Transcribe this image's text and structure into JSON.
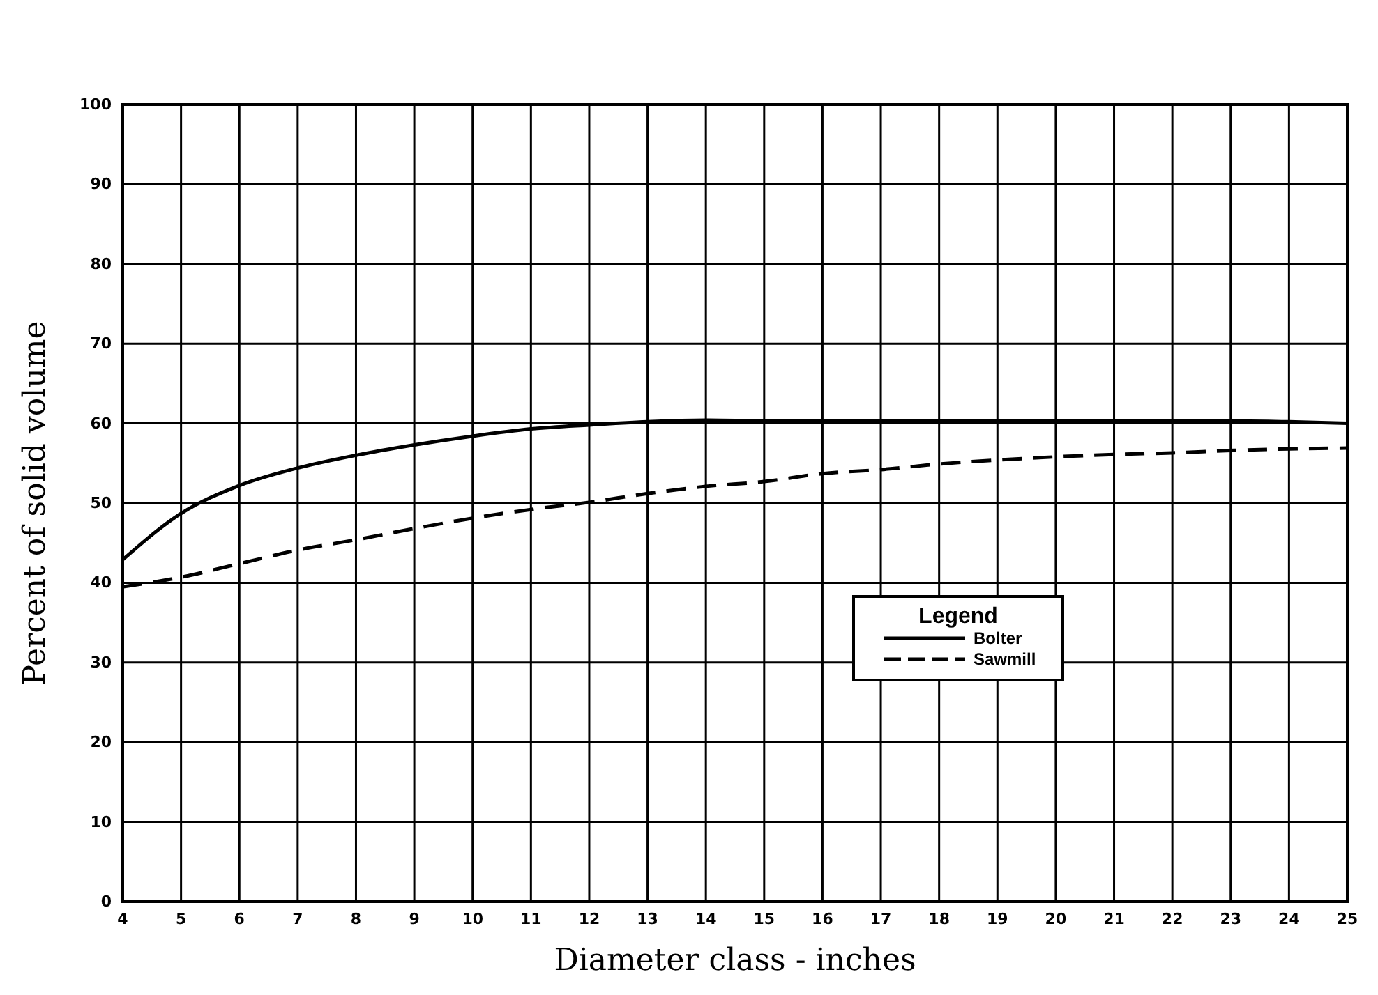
{
  "chart_data": {
    "type": "line",
    "xlabel": "Diameter class - inches",
    "ylabel": "Percent of solid volume",
    "legend_title": "Legend",
    "legend": "right",
    "x": [
      4,
      5,
      6,
      7,
      8,
      9,
      10,
      11,
      12,
      13,
      14,
      15,
      16,
      17,
      18,
      19,
      20,
      21,
      22,
      23,
      24,
      25
    ],
    "series": [
      {
        "name": "Bolter",
        "color": "#000000",
        "line_style": "solid",
        "values": [
          42.9,
          48.7,
          52.2,
          54.4,
          56.0,
          57.3,
          58.4,
          59.3,
          59.8,
          60.2,
          60.4,
          60.3,
          60.3,
          60.3,
          60.3,
          60.3,
          60.3,
          60.3,
          60.3,
          60.3,
          60.2,
          60.0
        ]
      },
      {
        "name": "Sawmill",
        "color": "#000000",
        "line_style": "dashed",
        "values": [
          39.5,
          40.7,
          42.4,
          44.1,
          45.4,
          46.8,
          48.1,
          49.2,
          50.1,
          51.2,
          52.1,
          52.7,
          53.7,
          54.2,
          54.9,
          55.4,
          55.8,
          56.1,
          56.3,
          56.6,
          56.8,
          56.9
        ]
      }
    ],
    "xlim": [
      4,
      25
    ],
    "ylim": [
      0,
      100
    ],
    "xticks": [
      4,
      5,
      6,
      7,
      8,
      9,
      10,
      11,
      12,
      13,
      14,
      15,
      16,
      17,
      18,
      19,
      20,
      21,
      22,
      23,
      24,
      25
    ],
    "yticks": [
      0,
      10,
      20,
      30,
      40,
      50,
      60,
      70,
      80,
      90,
      100
    ],
    "grid": true,
    "marker": "none"
  }
}
